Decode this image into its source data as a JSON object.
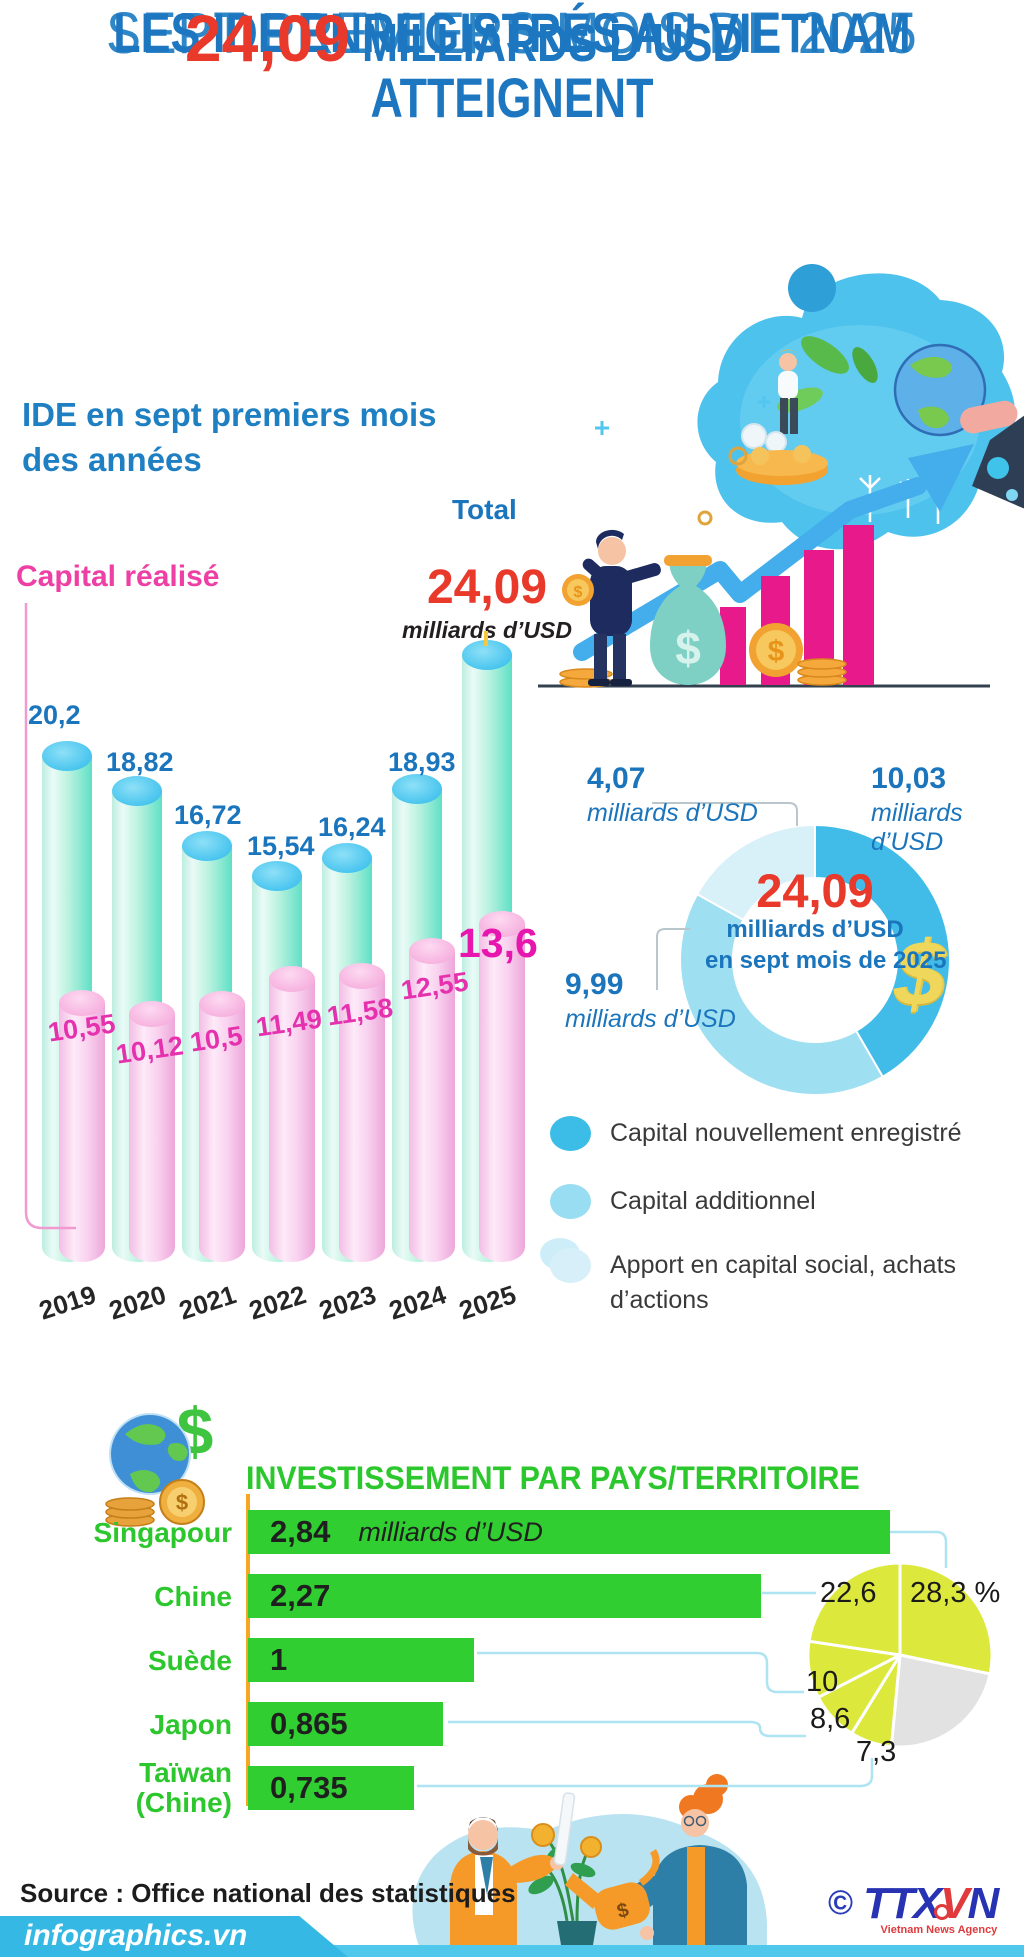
{
  "header": {
    "kicker": "SEPT PREMIERS MOIS DE 2025",
    "title": "LES IDE ENREGISTRÉS AU VIETNAM ATTEIGNENT",
    "amount": "24,09",
    "amount_unit": "MILLIARDS D’USD"
  },
  "ide_chart": {
    "title_line1": "IDE en sept premiers mois",
    "title_line2": "des années"
  },
  "chart_data": [
    {
      "type": "bar",
      "title": "IDE en sept premiers mois des années",
      "categories": [
        "2019",
        "2020",
        "2021",
        "2022",
        "2023",
        "2024",
        "2025"
      ],
      "unit": "milliards d’USD",
      "ylim": [
        0,
        26
      ],
      "series": [
        {
          "name": "Total",
          "values": [
            20.2,
            18.82,
            16.72,
            15.54,
            16.24,
            18.93,
            24.09
          ],
          "labels": [
            "20,2",
            "18,82",
            "16,72",
            "15,54",
            "16,24",
            "18,93",
            "24,09"
          ],
          "color_top": "#44c3ee",
          "color_body": "teal"
        },
        {
          "name": "Capital réalisé",
          "values": [
            10.55,
            10.12,
            10.5,
            11.49,
            11.58,
            12.55,
            13.6
          ],
          "labels": [
            "10,55",
            "10,12",
            "10,5",
            "11,49",
            "11,58",
            "12,55",
            "13,6"
          ],
          "color_top": "#f6aedd",
          "color_body": "pink"
        }
      ]
    },
    {
      "type": "pie",
      "subtype": "donut",
      "center_value": "24,09",
      "center_line1": "milliards d’USD",
      "center_line2": "en sept mois de 2025",
      "unit": "milliards d’USD",
      "slices": [
        {
          "label": "Capital nouvellement enregistré",
          "value": 10.03,
          "value_label": "10,03",
          "color": "#41bce8"
        },
        {
          "label": "Capital additionnel",
          "value": 9.99,
          "value_label": "9,99",
          "color": "#9fdff2"
        },
        {
          "label": "Apport en capital social, achats d’actions",
          "value": 4.07,
          "value_label": "4,07",
          "color": "#d8f0f8"
        }
      ]
    },
    {
      "type": "bar",
      "title": "INVESTISSEMENT PAR PAYS/TERRITOIRE",
      "unit": "milliards d’USD",
      "categories": [
        "Singapour",
        "Chine",
        "Suède",
        "Japon",
        "Taïwan (Chine)"
      ],
      "values": [
        2.84,
        2.27,
        1,
        0.865,
        0.735
      ],
      "labels": [
        "2,84",
        "2,27",
        "1",
        "0,865",
        "0,735"
      ],
      "bar_color": "#31ce31"
    },
    {
      "type": "pie",
      "slices": [
        {
          "label": "28,3 %",
          "value": 28.3,
          "color": "#dce83b"
        },
        {
          "label": "",
          "value": 23.2,
          "color": "#e2e2e2"
        },
        {
          "label": "7,3",
          "value": 7.3,
          "color": "#dce83b"
        },
        {
          "label": "8,6",
          "value": 8.6,
          "color": "#dce83b"
        },
        {
          "label": "10",
          "value": 10,
          "color": "#dce83b"
        },
        {
          "label": "22,6",
          "value": 22.6,
          "color": "#dce83b"
        }
      ]
    }
  ],
  "colors": {
    "heading_blue": "#1d76c0",
    "accent_red": "#e8392b",
    "pink": "#ee3fa4",
    "green": "#2cc72c",
    "banner_cyan": "#35b9e4"
  },
  "footer": {
    "source": "Source : Office national des statistiques",
    "website": "infographics.vn",
    "copyright": "©",
    "agency_prefix": "TTX",
    "agency_v": "V",
    "agency_n": "N",
    "agency_subtitle": "Vietnam News Agency"
  }
}
